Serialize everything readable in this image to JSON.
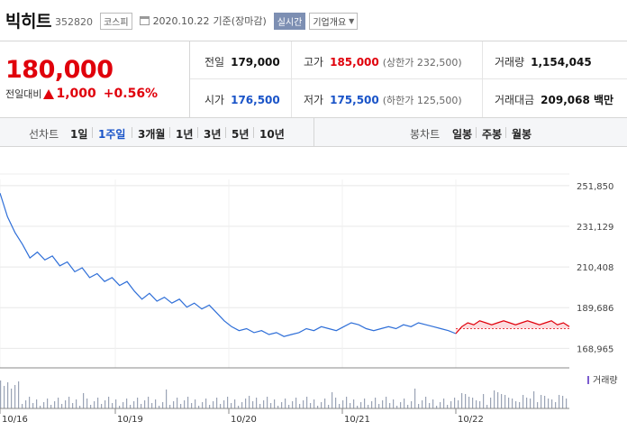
{
  "header": {
    "name": "빅히트",
    "code": "352820",
    "market": "코스피",
    "date": "2020.10.22",
    "basis": "기준(장마감)",
    "realtime_label": "실시간",
    "company_info_label": "기업개요"
  },
  "price": {
    "current": "180,000",
    "change_label": "전일대비",
    "change": "1,000",
    "change_pct": "+0.56%"
  },
  "stats": {
    "prev_close": {
      "label": "전일",
      "value": "179,000"
    },
    "high": {
      "label": "고가",
      "value": "185,000",
      "sub": "(상한가 232,500)"
    },
    "volume": {
      "label": "거래량",
      "value": "1,154,045"
    },
    "open": {
      "label": "시가",
      "value": "176,500"
    },
    "low": {
      "label": "저가",
      "value": "175,500",
      "sub": "(하한가 125,500)"
    },
    "amount": {
      "label": "거래대금",
      "value": "209,068 백만"
    }
  },
  "periods": {
    "line_title": "선차트",
    "line": [
      "1일",
      "1주일",
      "3개월",
      "1년",
      "3년",
      "5년",
      "10년"
    ],
    "active": "1주일",
    "candle_title": "봉차트",
    "candle": [
      "일봉",
      "주봉",
      "월봉"
    ]
  },
  "colors": {
    "up": "#e0000b",
    "down": "#1a54c8",
    "line": "#2f6fd8"
  },
  "chart_data": {
    "type": "line",
    "ylim": [
      165000,
      255000
    ],
    "y_ticks": [
      "251,850",
      "231,129",
      "210,408",
      "189,686",
      "168,965"
    ],
    "x_ticks": [
      "10/16",
      "10/19",
      "10/20",
      "10/21",
      "10/22"
    ],
    "volume_label": "거래량",
    "prev_close": 179000,
    "series": [
      {
        "values": [
          248000,
          236000,
          228000,
          222000,
          215000,
          218000,
          214000,
          216000,
          211000,
          213000,
          208000,
          210000,
          205000,
          207000,
          203000,
          205000,
          201000,
          203000,
          198000,
          194000,
          197000,
          193000,
          195000,
          192000,
          194000,
          190000,
          192000,
          189000,
          191000,
          187000,
          183000,
          180000,
          178000,
          179000,
          177000,
          178000,
          176000,
          177000,
          175000,
          176000,
          177000,
          179000,
          178000,
          180000,
          179000,
          178000,
          180000,
          182000,
          181000,
          179000,
          178000,
          179000,
          180000,
          179000,
          181000,
          180000,
          182000,
          181000,
          180000,
          179000,
          178000,
          176500
        ]
      },
      {
        "values": [
          176500,
          180000,
          182000,
          181000,
          183000,
          182000,
          181000,
          182000,
          183000,
          182000,
          181000,
          182000,
          183000,
          182000,
          181000,
          182000,
          183000,
          181000,
          182000,
          180000
        ]
      }
    ]
  }
}
